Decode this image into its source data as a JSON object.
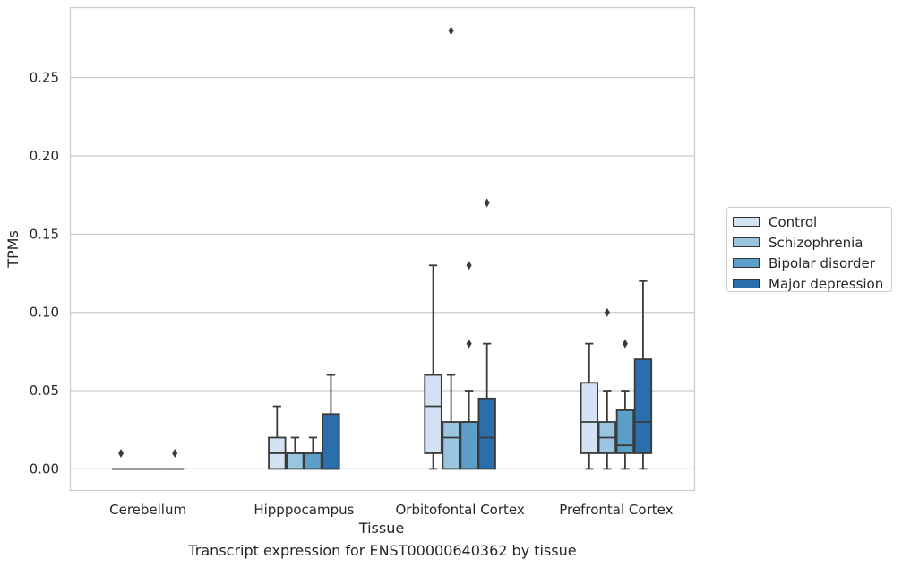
{
  "chart_data": {
    "type": "box",
    "caption": "Transcript expression for ENST00000640362 by tissue",
    "xlabel": "Tissue",
    "ylabel": "TPMs",
    "ylim": [
      -0.0135,
      0.295
    ],
    "yticks": [
      "0.00",
      "0.05",
      "0.10",
      "0.15",
      "0.20",
      "0.25"
    ],
    "ytick_values": [
      0,
      0.05,
      0.1,
      0.15,
      0.2,
      0.25
    ],
    "grid": true,
    "legend_position": "right",
    "categories": [
      "Cerebellum",
      "Hipppocampus",
      "Orbitofontal Cortex",
      "Prefrontal Cortex"
    ],
    "series": [
      {
        "name": "Control",
        "color": "#d3e3f3",
        "boxes": [
          {
            "whislo": 0,
            "q1": 0,
            "med": 0,
            "q3": 0,
            "whishi": 0,
            "fliers": [
              0.01
            ]
          },
          {
            "whislo": 0,
            "q1": 0,
            "med": 0.01,
            "q3": 0.02,
            "whishi": 0.04,
            "fliers": []
          },
          {
            "whislo": 0,
            "q1": 0.01,
            "med": 0.04,
            "q3": 0.06,
            "whishi": 0.13,
            "fliers": []
          },
          {
            "whislo": 0,
            "q1": 0.01,
            "med": 0.03,
            "q3": 0.055,
            "whishi": 0.08,
            "fliers": []
          }
        ]
      },
      {
        "name": "Schizophrenia",
        "color": "#9ac5e0",
        "boxes": [
          {
            "whislo": 0,
            "q1": 0,
            "med": 0,
            "q3": 0,
            "whishi": 0,
            "fliers": []
          },
          {
            "whislo": 0,
            "q1": 0,
            "med": 0.01,
            "q3": 0.01,
            "whishi": 0.02,
            "fliers": []
          },
          {
            "whislo": 0,
            "q1": 0,
            "med": 0.02,
            "q3": 0.03,
            "whishi": 0.06,
            "fliers": [
              0.28
            ]
          },
          {
            "whislo": 0,
            "q1": 0.01,
            "med": 0.02,
            "q3": 0.03,
            "whishi": 0.05,
            "fliers": [
              0.1
            ]
          }
        ]
      },
      {
        "name": "Bipolar disorder",
        "color": "#5b9fc9",
        "boxes": [
          {
            "whislo": 0,
            "q1": 0,
            "med": 0,
            "q3": 0,
            "whishi": 0,
            "fliers": []
          },
          {
            "whislo": 0,
            "q1": 0,
            "med": 0.01,
            "q3": 0.01,
            "whishi": 0.02,
            "fliers": []
          },
          {
            "whislo": 0,
            "q1": 0,
            "med": 0.03,
            "q3": 0.03,
            "whishi": 0.05,
            "fliers": [
              0.08,
              0.13
            ]
          },
          {
            "whislo": 0,
            "q1": 0.01,
            "med": 0.015,
            "q3": 0.0375,
            "whishi": 0.05,
            "fliers": [
              0.08
            ]
          }
        ]
      },
      {
        "name": "Major depression",
        "color": "#2a6fad",
        "boxes": [
          {
            "whislo": 0,
            "q1": 0,
            "med": 0,
            "q3": 0,
            "whishi": 0,
            "fliers": [
              0.01
            ]
          },
          {
            "whislo": 0,
            "q1": 0,
            "med": 0,
            "q3": 0.035,
            "whishi": 0.06,
            "fliers": []
          },
          {
            "whislo": 0,
            "q1": 0,
            "med": 0.02,
            "q3": 0.045,
            "whishi": 0.08,
            "fliers": [
              0.17
            ]
          },
          {
            "whislo": 0,
            "q1": 0.01,
            "med": 0.03,
            "q3": 0.07,
            "whishi": 0.12,
            "fliers": []
          }
        ]
      }
    ]
  }
}
